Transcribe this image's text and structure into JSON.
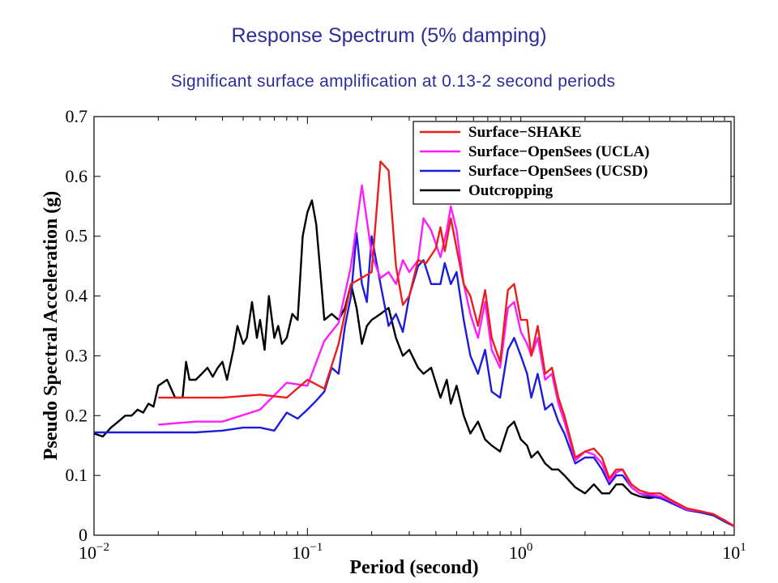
{
  "header": {
    "title": "Response Spectrum (5% damping)",
    "subtitle": "Significant surface amplification at 0.13-2 second periods"
  },
  "chart_data": {
    "type": "line",
    "title": "Response Spectrum (5% damping)",
    "xlabel": "Period (second)",
    "ylabel": "Pseudo Spectral Acceleration (g)",
    "xscale": "log",
    "xlim": [
      0.01,
      10
    ],
    "ylim": [
      0,
      0.7
    ],
    "grid": false,
    "legend_position": "top-right",
    "y_ticks": [
      "0",
      "0.1",
      "0.2",
      "0.3",
      "0.4",
      "0.5",
      "0.6",
      "0.7"
    ],
    "x_ticks": [
      {
        "base": "10",
        "exp": "−2",
        "value": 0.01
      },
      {
        "base": "10",
        "exp": "−1",
        "value": 0.1
      },
      {
        "base": "10",
        "exp": "0",
        "value": 1
      },
      {
        "base": "10",
        "exp": "1",
        "value": 10
      }
    ],
    "series": [
      {
        "name": "Surface−SHAKE",
        "color": "#ee1c1c",
        "points": [
          [
            0.02,
            0.23
          ],
          [
            0.03,
            0.23
          ],
          [
            0.04,
            0.23
          ],
          [
            0.06,
            0.235
          ],
          [
            0.08,
            0.23
          ],
          [
            0.1,
            0.26
          ],
          [
            0.12,
            0.245
          ],
          [
            0.14,
            0.32
          ],
          [
            0.16,
            0.42
          ],
          [
            0.2,
            0.44
          ],
          [
            0.22,
            0.625
          ],
          [
            0.24,
            0.61
          ],
          [
            0.26,
            0.45
          ],
          [
            0.28,
            0.385
          ],
          [
            0.3,
            0.4
          ],
          [
            0.33,
            0.46
          ],
          [
            0.36,
            0.455
          ],
          [
            0.4,
            0.48
          ],
          [
            0.42,
            0.515
          ],
          [
            0.44,
            0.475
          ],
          [
            0.47,
            0.53
          ],
          [
            0.5,
            0.48
          ],
          [
            0.54,
            0.42
          ],
          [
            0.58,
            0.4
          ],
          [
            0.63,
            0.35
          ],
          [
            0.68,
            0.41
          ],
          [
            0.73,
            0.33
          ],
          [
            0.8,
            0.29
          ],
          [
            0.87,
            0.41
          ],
          [
            0.93,
            0.42
          ],
          [
            1.0,
            0.36
          ],
          [
            1.07,
            0.36
          ],
          [
            1.12,
            0.3
          ],
          [
            1.2,
            0.35
          ],
          [
            1.3,
            0.27
          ],
          [
            1.4,
            0.28
          ],
          [
            1.5,
            0.23
          ],
          [
            1.6,
            0.2
          ],
          [
            1.8,
            0.13
          ],
          [
            2.0,
            0.14
          ],
          [
            2.2,
            0.145
          ],
          [
            2.4,
            0.13
          ],
          [
            2.6,
            0.095
          ],
          [
            2.8,
            0.11
          ],
          [
            3.0,
            0.11
          ],
          [
            3.3,
            0.085
          ],
          [
            3.6,
            0.075
          ],
          [
            4.0,
            0.07
          ],
          [
            4.5,
            0.07
          ],
          [
            5.0,
            0.06
          ],
          [
            6.0,
            0.045
          ],
          [
            7.0,
            0.04
          ],
          [
            8.0,
            0.035
          ],
          [
            9.0,
            0.025
          ],
          [
            10.0,
            0.015
          ]
        ]
      },
      {
        "name": "Surface−OpenSees (UCLA)",
        "color": "#ff1cff",
        "points": [
          [
            0.02,
            0.185
          ],
          [
            0.03,
            0.19
          ],
          [
            0.04,
            0.19
          ],
          [
            0.06,
            0.21
          ],
          [
            0.08,
            0.255
          ],
          [
            0.1,
            0.25
          ],
          [
            0.12,
            0.325
          ],
          [
            0.14,
            0.355
          ],
          [
            0.16,
            0.45
          ],
          [
            0.18,
            0.585
          ],
          [
            0.2,
            0.47
          ],
          [
            0.22,
            0.43
          ],
          [
            0.24,
            0.44
          ],
          [
            0.26,
            0.42
          ],
          [
            0.28,
            0.46
          ],
          [
            0.3,
            0.44
          ],
          [
            0.33,
            0.46
          ],
          [
            0.35,
            0.53
          ],
          [
            0.38,
            0.51
          ],
          [
            0.42,
            0.465
          ],
          [
            0.45,
            0.51
          ],
          [
            0.47,
            0.55
          ],
          [
            0.5,
            0.51
          ],
          [
            0.54,
            0.42
          ],
          [
            0.58,
            0.37
          ],
          [
            0.63,
            0.33
          ],
          [
            0.68,
            0.39
          ],
          [
            0.73,
            0.31
          ],
          [
            0.8,
            0.28
          ],
          [
            0.87,
            0.38
          ],
          [
            0.93,
            0.39
          ],
          [
            1.0,
            0.34
          ],
          [
            1.07,
            0.32
          ],
          [
            1.12,
            0.3
          ],
          [
            1.2,
            0.33
          ],
          [
            1.3,
            0.26
          ],
          [
            1.4,
            0.27
          ],
          [
            1.5,
            0.22
          ],
          [
            1.6,
            0.19
          ],
          [
            1.8,
            0.125
          ],
          [
            2.0,
            0.14
          ],
          [
            2.2,
            0.135
          ],
          [
            2.4,
            0.12
          ],
          [
            2.6,
            0.09
          ],
          [
            2.8,
            0.105
          ],
          [
            3.0,
            0.11
          ],
          [
            3.3,
            0.08
          ],
          [
            3.6,
            0.07
          ],
          [
            4.0,
            0.068
          ],
          [
            4.5,
            0.065
          ],
          [
            5.0,
            0.058
          ],
          [
            6.0,
            0.043
          ],
          [
            7.0,
            0.04
          ],
          [
            8.0,
            0.035
          ],
          [
            9.0,
            0.025
          ],
          [
            10.0,
            0.015
          ]
        ]
      },
      {
        "name": "Surface−OpenSees (UCSD)",
        "color": "#1c1cdd",
        "points": [
          [
            0.01,
            0.172
          ],
          [
            0.02,
            0.172
          ],
          [
            0.03,
            0.172
          ],
          [
            0.04,
            0.175
          ],
          [
            0.05,
            0.18
          ],
          [
            0.06,
            0.18
          ],
          [
            0.07,
            0.175
          ],
          [
            0.08,
            0.205
          ],
          [
            0.09,
            0.195
          ],
          [
            0.1,
            0.21
          ],
          [
            0.11,
            0.225
          ],
          [
            0.12,
            0.24
          ],
          [
            0.13,
            0.28
          ],
          [
            0.14,
            0.27
          ],
          [
            0.15,
            0.35
          ],
          [
            0.16,
            0.4
          ],
          [
            0.17,
            0.505
          ],
          [
            0.18,
            0.42
          ],
          [
            0.19,
            0.39
          ],
          [
            0.2,
            0.5
          ],
          [
            0.22,
            0.42
          ],
          [
            0.24,
            0.35
          ],
          [
            0.26,
            0.37
          ],
          [
            0.28,
            0.34
          ],
          [
            0.3,
            0.4
          ],
          [
            0.33,
            0.45
          ],
          [
            0.35,
            0.46
          ],
          [
            0.38,
            0.42
          ],
          [
            0.42,
            0.42
          ],
          [
            0.44,
            0.455
          ],
          [
            0.47,
            0.42
          ],
          [
            0.5,
            0.44
          ],
          [
            0.54,
            0.36
          ],
          [
            0.58,
            0.3
          ],
          [
            0.63,
            0.27
          ],
          [
            0.68,
            0.31
          ],
          [
            0.73,
            0.24
          ],
          [
            0.8,
            0.23
          ],
          [
            0.87,
            0.31
          ],
          [
            0.93,
            0.33
          ],
          [
            1.0,
            0.3
          ],
          [
            1.07,
            0.27
          ],
          [
            1.12,
            0.23
          ],
          [
            1.2,
            0.27
          ],
          [
            1.3,
            0.21
          ],
          [
            1.4,
            0.22
          ],
          [
            1.5,
            0.19
          ],
          [
            1.6,
            0.17
          ],
          [
            1.8,
            0.12
          ],
          [
            2.0,
            0.13
          ],
          [
            2.2,
            0.13
          ],
          [
            2.4,
            0.11
          ],
          [
            2.6,
            0.085
          ],
          [
            2.8,
            0.1
          ],
          [
            3.0,
            0.1
          ],
          [
            3.3,
            0.08
          ],
          [
            3.6,
            0.07
          ],
          [
            4.0,
            0.065
          ],
          [
            4.5,
            0.062
          ],
          [
            5.0,
            0.055
          ],
          [
            6.0,
            0.042
          ],
          [
            7.0,
            0.038
          ],
          [
            8.0,
            0.033
          ],
          [
            9.0,
            0.023
          ],
          [
            10.0,
            0.015
          ]
        ]
      },
      {
        "name": "Outcropping",
        "color": "#000000",
        "points": [
          [
            0.01,
            0.17
          ],
          [
            0.011,
            0.165
          ],
          [
            0.012,
            0.18
          ],
          [
            0.013,
            0.19
          ],
          [
            0.014,
            0.2
          ],
          [
            0.015,
            0.2
          ],
          [
            0.016,
            0.21
          ],
          [
            0.017,
            0.205
          ],
          [
            0.018,
            0.22
          ],
          [
            0.019,
            0.215
          ],
          [
            0.02,
            0.25
          ],
          [
            0.022,
            0.26
          ],
          [
            0.024,
            0.23
          ],
          [
            0.026,
            0.23
          ],
          [
            0.027,
            0.29
          ],
          [
            0.028,
            0.26
          ],
          [
            0.03,
            0.26
          ],
          [
            0.032,
            0.27
          ],
          [
            0.034,
            0.28
          ],
          [
            0.036,
            0.265
          ],
          [
            0.038,
            0.28
          ],
          [
            0.04,
            0.29
          ],
          [
            0.042,
            0.26
          ],
          [
            0.045,
            0.31
          ],
          [
            0.047,
            0.35
          ],
          [
            0.05,
            0.32
          ],
          [
            0.052,
            0.33
          ],
          [
            0.055,
            0.39
          ],
          [
            0.058,
            0.33
          ],
          [
            0.06,
            0.36
          ],
          [
            0.063,
            0.31
          ],
          [
            0.066,
            0.4
          ],
          [
            0.07,
            0.33
          ],
          [
            0.073,
            0.35
          ],
          [
            0.076,
            0.32
          ],
          [
            0.08,
            0.33
          ],
          [
            0.085,
            0.37
          ],
          [
            0.09,
            0.36
          ],
          [
            0.095,
            0.5
          ],
          [
            0.1,
            0.54
          ],
          [
            0.105,
            0.56
          ],
          [
            0.11,
            0.52
          ],
          [
            0.115,
            0.44
          ],
          [
            0.12,
            0.36
          ],
          [
            0.13,
            0.37
          ],
          [
            0.14,
            0.36
          ],
          [
            0.15,
            0.38
          ],
          [
            0.16,
            0.42
          ],
          [
            0.17,
            0.38
          ],
          [
            0.18,
            0.32
          ],
          [
            0.19,
            0.35
          ],
          [
            0.2,
            0.36
          ],
          [
            0.22,
            0.37
          ],
          [
            0.24,
            0.38
          ],
          [
            0.26,
            0.33
          ],
          [
            0.28,
            0.3
          ],
          [
            0.3,
            0.31
          ],
          [
            0.33,
            0.28
          ],
          [
            0.35,
            0.27
          ],
          [
            0.38,
            0.28
          ],
          [
            0.42,
            0.23
          ],
          [
            0.45,
            0.26
          ],
          [
            0.47,
            0.22
          ],
          [
            0.5,
            0.25
          ],
          [
            0.54,
            0.2
          ],
          [
            0.58,
            0.17
          ],
          [
            0.63,
            0.19
          ],
          [
            0.68,
            0.16
          ],
          [
            0.73,
            0.15
          ],
          [
            0.8,
            0.14
          ],
          [
            0.87,
            0.18
          ],
          [
            0.93,
            0.19
          ],
          [
            1.0,
            0.16
          ],
          [
            1.07,
            0.15
          ],
          [
            1.12,
            0.13
          ],
          [
            1.2,
            0.14
          ],
          [
            1.3,
            0.12
          ],
          [
            1.4,
            0.11
          ],
          [
            1.5,
            0.11
          ],
          [
            1.6,
            0.1
          ],
          [
            1.8,
            0.08
          ],
          [
            2.0,
            0.07
          ],
          [
            2.2,
            0.085
          ],
          [
            2.4,
            0.07
          ],
          [
            2.6,
            0.07
          ],
          [
            2.8,
            0.085
          ],
          [
            3.0,
            0.085
          ],
          [
            3.3,
            0.07
          ],
          [
            3.6,
            0.065
          ],
          [
            4.0,
            0.062
          ],
          [
            4.5,
            0.065
          ],
          [
            5.0,
            0.055
          ],
          [
            6.0,
            0.042
          ],
          [
            7.0,
            0.038
          ],
          [
            8.0,
            0.033
          ],
          [
            9.0,
            0.023
          ],
          [
            10.0,
            0.015
          ]
        ]
      }
    ]
  }
}
